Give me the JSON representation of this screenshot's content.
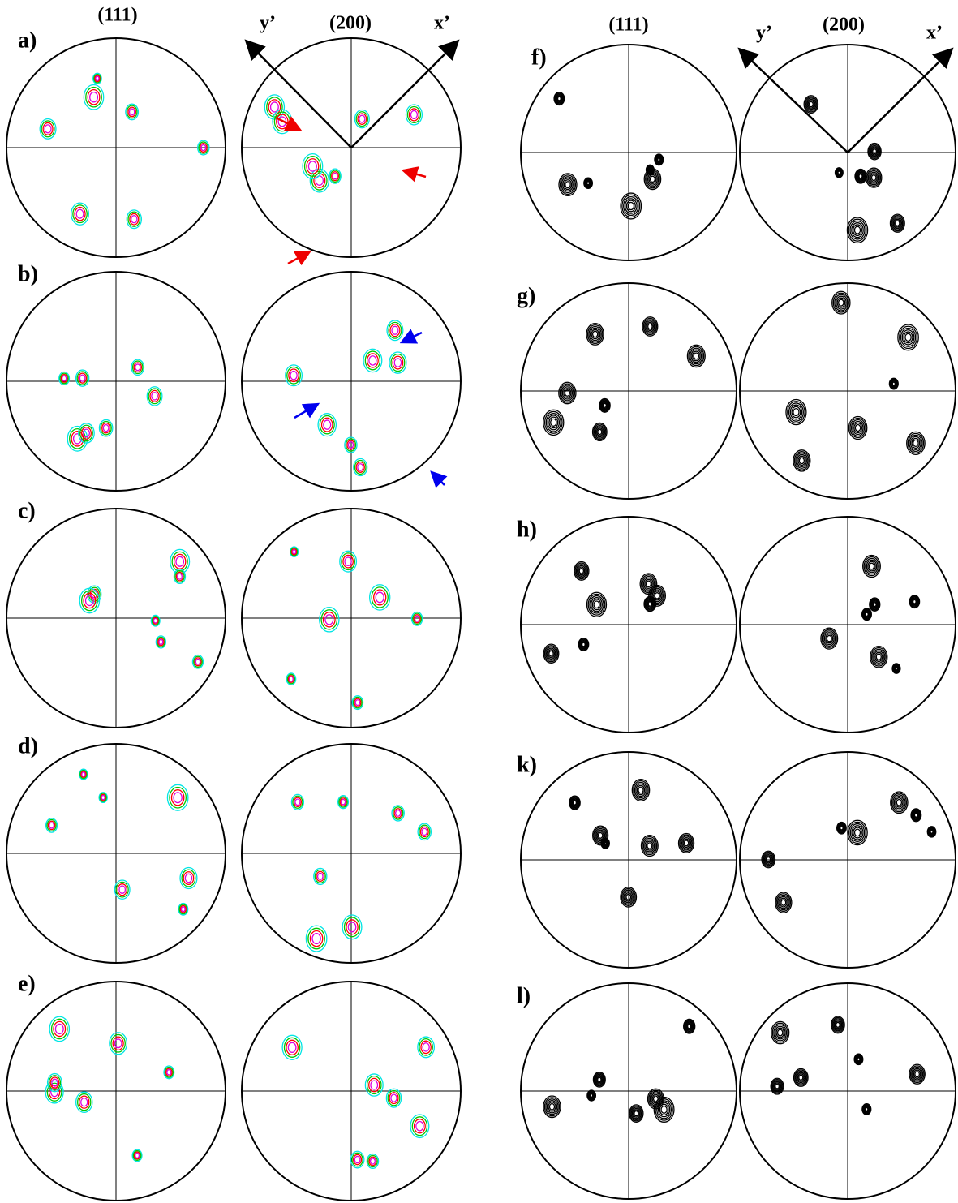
{
  "left_headers": {
    "plane_1": "(111)",
    "plane_2": "(200)",
    "y_axis": "y’",
    "x_axis": "x’"
  },
  "right_headers": {
    "plane_1": "(111)",
    "plane_2": "(200)",
    "y_axis": "y’",
    "x_axis": "x’"
  },
  "left_panels": [
    {
      "label": "a)"
    },
    {
      "label": "b)"
    },
    {
      "label": "c)"
    },
    {
      "label": "d)"
    },
    {
      "label": "e)"
    }
  ],
  "right_panels": [
    {
      "label": "f)"
    },
    {
      "label": "g)"
    },
    {
      "label": "h)"
    },
    {
      "label": "k)"
    },
    {
      "label": "l)"
    }
  ]
}
